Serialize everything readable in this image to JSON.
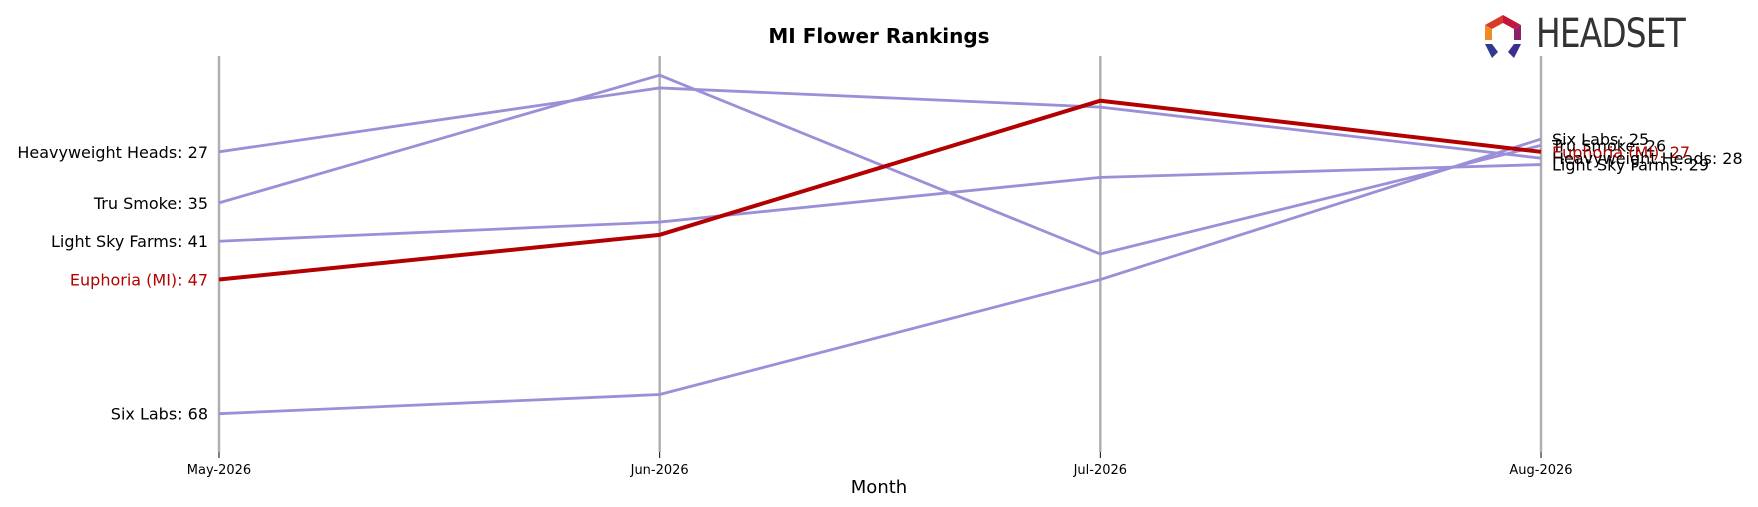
{
  "chart_data": {
    "type": "line",
    "title": "MI Flower Rankings",
    "xlabel": "Month",
    "x": [
      "May-2026",
      "Jun-2026",
      "Jul-2026",
      "Aug-2026"
    ],
    "y_inverted": true,
    "ylim": [
      74,
      12
    ],
    "grid": "vertical lines at each month",
    "highlight_color": "#b30000",
    "series_color": "#9b8fd8",
    "series": [
      {
        "name": "Heavyweight Heads",
        "values": [
          27,
          17,
          20,
          28
        ],
        "highlight": false
      },
      {
        "name": "Tru Smoke",
        "values": [
          35,
          15,
          43,
          26
        ],
        "highlight": false
      },
      {
        "name": "Light Sky Farms",
        "values": [
          41,
          38,
          31,
          29
        ],
        "highlight": false
      },
      {
        "name": "Euphoria (MI)",
        "values": [
          47,
          40,
          19,
          27
        ],
        "highlight": true
      },
      {
        "name": "Six Labs",
        "values": [
          68,
          65,
          47,
          25
        ],
        "highlight": false
      }
    ],
    "start_labels": [
      "Heavyweight Heads: 27",
      "Tru Smoke: 35",
      "Light Sky Farms: 41",
      "Euphoria (MI): 47",
      "Six Labs: 68"
    ],
    "end_labels": [
      "Six Labs: 25",
      "Tru Smoke: 26",
      "Euphoria (MI): 27",
      "Heavyweight Heads: 28",
      "Light Sky Farms: 29"
    ]
  },
  "logo": {
    "text": "HEADSET"
  }
}
